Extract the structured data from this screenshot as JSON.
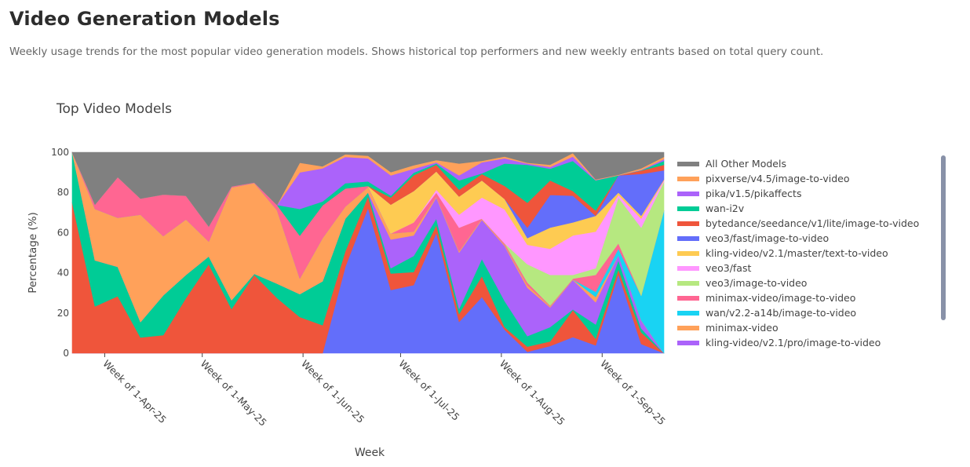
{
  "header": {
    "title": "Video Generation Models",
    "subtitle": "Weekly usage trends for the most popular video generation models. Shows historical top performers and new weekly entrants based on total query count."
  },
  "chart_data": {
    "type": "area",
    "stacked": true,
    "title": "Top Video Models",
    "xlabel": "Week",
    "ylabel": "Percentage (%)",
    "ylim": [
      0,
      100
    ],
    "yticks": [
      0,
      20,
      40,
      60,
      80,
      100
    ],
    "xticks": [
      {
        "date": "2025-04-01",
        "label": "Week of 1-Apr-25"
      },
      {
        "date": "2025-05-01",
        "label": "Week of 1-May-25"
      },
      {
        "date": "2025-06-01",
        "label": "Week of 1-Jun-25"
      },
      {
        "date": "2025-07-01",
        "label": "Week of 1-Jul-25"
      },
      {
        "date": "2025-08-01",
        "label": "Week of 1-Aug-25"
      },
      {
        "date": "2025-09-01",
        "label": "Week of 1-Sep-25"
      }
    ],
    "grid": false,
    "legend_position": "right",
    "x": [
      "2025-03-22",
      "2025-03-29",
      "2025-04-05",
      "2025-04-12",
      "2025-04-19",
      "2025-04-26",
      "2025-05-03",
      "2025-05-10",
      "2025-05-17",
      "2025-05-24",
      "2025-05-31",
      "2025-06-07",
      "2025-06-14",
      "2025-06-21",
      "2025-06-28",
      "2025-07-05",
      "2025-07-12",
      "2025-07-19",
      "2025-07-26",
      "2025-08-02",
      "2025-08-09",
      "2025-08-16",
      "2025-08-23",
      "2025-08-30",
      "2025-09-06",
      "2025-09-13",
      "2025-09-20"
    ],
    "series": [
      {
        "name": "",
        "color": "#636EFA",
        "values": [
          0,
          0,
          0,
          0,
          0,
          0,
          0,
          0,
          0,
          0,
          0,
          0,
          43,
          72.3,
          31.5,
          33.9,
          59.9,
          15.6,
          28,
          11.7,
          0.7,
          3.6,
          8,
          3.9,
          39.3,
          4.6,
          0
        ]
      },
      {
        "name": "",
        "color": "#EF553B",
        "values": [
          75,
          23.3,
          28.4,
          7.8,
          9,
          27.5,
          44.3,
          22,
          39,
          27.5,
          18,
          13.9,
          7.8,
          5.8,
          8.2,
          6.5,
          3.9,
          3.9,
          10.4,
          1.3,
          2.6,
          2.3,
          13.5,
          3.3,
          2.4,
          5.8,
          0
        ]
      },
      {
        "name": "",
        "color": "#00CC96",
        "values": [
          25,
          22.9,
          14.6,
          7.7,
          19.8,
          11.5,
          3.9,
          4.4,
          0.5,
          7.1,
          11.4,
          21.9,
          16.2,
          1.9,
          2.6,
          8,
          3.2,
          2.6,
          8.5,
          13,
          5.2,
          7.1,
          0.3,
          7.1,
          4.5,
          2,
          0
        ]
      },
      {
        "name": "kling-video/v2.1/pro/image-to-video",
        "color": "#AB63FA",
        "values": [
          0,
          0,
          0,
          0,
          0,
          0,
          0,
          0,
          0,
          0,
          0,
          0,
          0,
          0,
          14.3,
          10.2,
          10.5,
          28,
          19.5,
          27.4,
          24.1,
          9.8,
          14.7,
          11.1,
          2.6,
          3.9,
          0
        ]
      },
      {
        "name": "minimax-video",
        "color": "#FFA15A",
        "values": [
          0,
          25.6,
          24.4,
          53.5,
          29.5,
          27.6,
          7.4,
          56.1,
          45.2,
          36.6,
          7.8,
          21.5,
          6,
          2.7,
          3,
          1.9,
          0.6,
          0.7,
          0.6,
          0.6,
          1.3,
          0.6,
          0.2,
          2.6,
          0,
          0.2,
          0
        ]
      },
      {
        "name": "wan/v2.2-a14b/image-to-video",
        "color": "#19D3F3",
        "values": [
          0,
          0,
          0,
          0,
          0,
          0,
          0,
          0,
          0,
          0,
          0,
          0,
          0,
          0,
          0,
          0,
          0,
          0,
          0,
          0,
          0,
          0,
          0,
          2.6,
          3.2,
          12.1,
          71
        ]
      },
      {
        "name": "minimax-video/image-to-video",
        "color": "#FF6692",
        "values": [
          0,
          2.2,
          20.3,
          8,
          20.7,
          11.8,
          7.5,
          0.5,
          0.3,
          2.6,
          21.3,
          16.3,
          9,
          0.5,
          0,
          4.6,
          1.9,
          11.7,
          0,
          0.7,
          1.3,
          0.3,
          0.4,
          8.4,
          2.7,
          0,
          0
        ]
      },
      {
        "name": "veo3/image-to-video",
        "color": "#B6E880",
        "values": [
          0,
          0,
          0,
          0,
          0,
          0,
          0,
          0,
          0,
          0,
          0,
          0,
          0,
          0,
          0,
          0,
          0,
          0,
          0,
          0,
          9.1,
          15.3,
          1.9,
          3.3,
          22.8,
          33.9,
          14.3
        ]
      },
      {
        "name": "veo3/fast",
        "color": "#FF97FF",
        "values": [
          0,
          0,
          0,
          0,
          0,
          0,
          0,
          0,
          0,
          0,
          0,
          0,
          0,
          0,
          0,
          0,
          1.4,
          6.5,
          10.5,
          16.9,
          9.7,
          13,
          19.6,
          18.2,
          1.3,
          4.5,
          0.7
        ]
      },
      {
        "name": "kling-video/v2.1/master/text-to-video",
        "color": "#FECB52",
        "values": [
          0,
          0,
          0,
          0,
          0,
          0,
          0,
          0,
          0,
          0,
          0,
          0,
          0,
          0,
          14.4,
          15.6,
          9.1,
          9,
          8.5,
          5.2,
          3.3,
          10.5,
          6.5,
          7.9,
          1.2,
          1.4,
          0.5
        ]
      },
      {
        "name": "veo3/fast/image-to-video",
        "color": "#636EFA",
        "values": [
          0,
          0,
          0,
          0,
          0,
          0,
          0,
          0,
          0,
          0,
          0,
          0,
          0,
          0,
          0,
          0,
          0,
          0,
          0,
          0,
          5.2,
          16.3,
          13.3,
          0,
          8.5,
          20.8,
          4.5
        ]
      },
      {
        "name": "bytedance/seedance/v1/lite/image-to-video",
        "color": "#EF553B",
        "values": [
          0,
          0,
          0,
          0,
          0,
          0,
          0,
          0,
          0,
          0,
          0,
          0,
          0,
          0,
          3.5,
          7.8,
          3.3,
          3.4,
          3.2,
          6.5,
          12.4,
          7.2,
          2.3,
          2.6,
          0,
          1.7,
          2.8
        ]
      },
      {
        "name": "wan-i2v",
        "color": "#00CC96",
        "values": [
          0,
          0,
          0,
          0,
          0,
          0,
          0,
          0,
          0,
          0,
          13.3,
          1.9,
          2.6,
          2.3,
          0.9,
          1.3,
          0.6,
          4.6,
          0.3,
          11.1,
          18.9,
          5.8,
          15,
          15,
          0,
          0.1,
          1.9
        ]
      },
      {
        "name": "pika/v1.5/pikaffects",
        "color": "#AB63FA",
        "values": [
          0,
          0,
          0,
          0,
          0,
          0,
          0,
          0,
          0,
          0,
          18.2,
          16.5,
          13.1,
          11.5,
          10.1,
          2,
          0.6,
          2.5,
          5.5,
          2.6,
          0.6,
          0.9,
          2.2,
          0.2,
          0,
          0.2,
          0.9
        ]
      },
      {
        "name": "pixverse/v4.5/image-to-video",
        "color": "#FFA15A",
        "values": [
          0,
          0,
          0,
          0,
          0,
          0,
          0,
          0,
          0,
          0,
          4.8,
          1,
          1.3,
          1.3,
          1.6,
          1.7,
          1.1,
          5.9,
          0.7,
          0.9,
          0.4,
          1.1,
          1.7,
          0.3,
          0.3,
          0.8,
          1.1
        ]
      },
      {
        "name": "All Other Models",
        "color": "#808080",
        "values": [
          0,
          26,
          12.3,
          23,
          21,
          21.6,
          36.9,
          17,
          15,
          26.2,
          5.2,
          7,
          1,
          1.7,
          9.9,
          6.5,
          3.9,
          5.6,
          4.3,
          2.1,
          5.2,
          6.2,
          0.4,
          13.5,
          11.2,
          8,
          2.3
        ]
      }
    ]
  }
}
